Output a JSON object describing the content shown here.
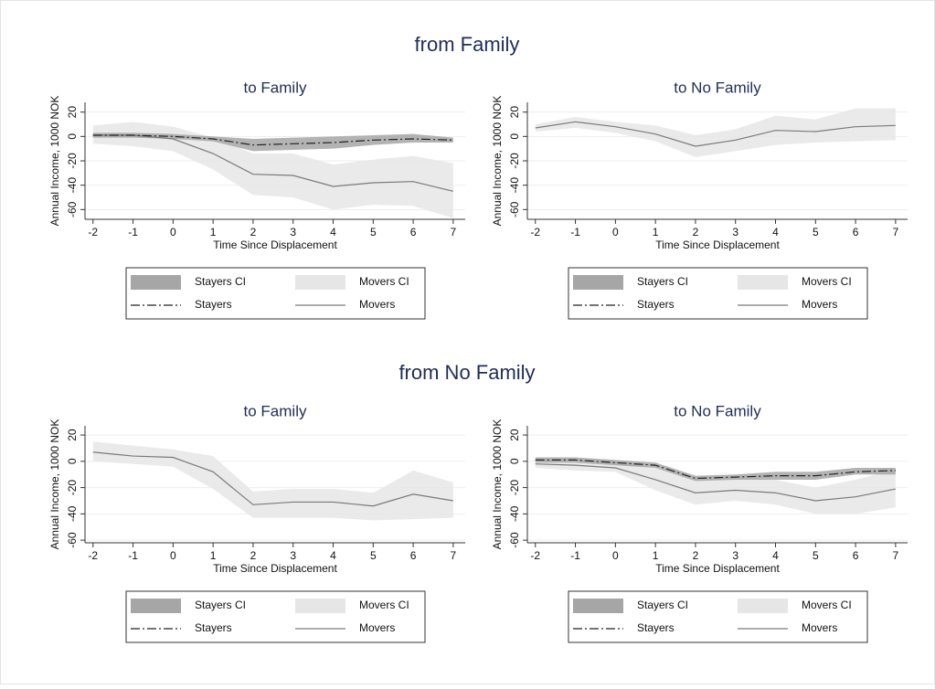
{
  "groups": [
    {
      "title": "from Family"
    },
    {
      "title": "from No Family"
    }
  ],
  "chart_data": [
    {
      "type": "line",
      "title": "to Family",
      "xlabel": "Time Since Displacement",
      "ylabel": "Annual Income, 1000 NOK",
      "x": [
        -2,
        -1,
        0,
        1,
        2,
        3,
        4,
        5,
        6,
        7
      ],
      "xlim": [
        -2.2,
        7.3
      ],
      "xticks": [
        -2,
        -1,
        0,
        1,
        2,
        3,
        4,
        5,
        6,
        7
      ],
      "ylim": [
        -68,
        28
      ],
      "yticks": [
        -60,
        -40,
        -20,
        0,
        20
      ],
      "grid": true,
      "series": [
        {
          "name": "Stayers CI",
          "color": "#a6a6a6",
          "lower": [
            -1,
            -1,
            -2,
            -4,
            -12,
            -11,
            -10,
            -7,
            -5,
            -5
          ],
          "upper": [
            3,
            3,
            2,
            0,
            -2,
            -1,
            0,
            1,
            2,
            -1
          ]
        },
        {
          "name": "Movers CI",
          "color": "#e6e6e6",
          "lower": [
            -6,
            -8,
            -12,
            -27,
            -48,
            -50,
            -60,
            -56,
            -57,
            -67
          ],
          "upper": [
            9,
            12,
            8,
            -1,
            -14,
            -14,
            -23,
            -19,
            -16,
            -22
          ]
        },
        {
          "name": "Stayers",
          "color": "#222222",
          "dash": "dash-dot",
          "values": [
            1,
            1,
            0,
            -2,
            -7,
            -6,
            -5,
            -3,
            -2,
            -3
          ]
        },
        {
          "name": "Movers",
          "color": "#7a7a7a",
          "dash": "solid",
          "values": [
            1,
            1,
            -2,
            -14,
            -31,
            -32,
            -41,
            -38,
            -37,
            -45
          ]
        }
      ]
    },
    {
      "type": "line",
      "title": "to No Family",
      "xlabel": "Time Since Displacement",
      "ylabel": "Annual Income, 1000 NOK",
      "x": [
        -2,
        -1,
        0,
        1,
        2,
        3,
        4,
        5,
        6,
        7
      ],
      "xlim": [
        -2.2,
        7.3
      ],
      "xticks": [
        -2,
        -1,
        0,
        1,
        2,
        3,
        4,
        5,
        6,
        7
      ],
      "ylim": [
        -68,
        28
      ],
      "yticks": [
        -60,
        -40,
        -20,
        0,
        20
      ],
      "grid": true,
      "series": [
        {
          "name": "Stayers CI",
          "color": "#a6a6a6",
          "lower": [
            null,
            null,
            null,
            null,
            null,
            null,
            null,
            null,
            null,
            null
          ],
          "upper": [
            null,
            null,
            null,
            null,
            null,
            null,
            null,
            null,
            null,
            null
          ]
        },
        {
          "name": "Movers CI",
          "color": "#e6e6e6",
          "lower": [
            4,
            7,
            3,
            -4,
            -17,
            -12,
            -7,
            -5,
            -4,
            -3
          ],
          "upper": [
            10,
            16,
            12,
            9,
            1,
            6,
            17,
            14,
            23,
            23
          ]
        },
        {
          "name": "Stayers",
          "color": "#222222",
          "dash": "dash-dot",
          "values": [
            null,
            null,
            null,
            null,
            null,
            null,
            null,
            null,
            null,
            null
          ]
        },
        {
          "name": "Movers",
          "color": "#7a7a7a",
          "dash": "solid",
          "values": [
            7,
            12,
            8,
            2,
            -8,
            -3,
            5,
            4,
            8,
            9
          ]
        }
      ]
    },
    {
      "type": "line",
      "title": "to Family",
      "xlabel": "Time Since Displacement",
      "ylabel": "Annual Income, 1000 NOK",
      "x": [
        -2,
        -1,
        0,
        1,
        2,
        3,
        4,
        5,
        6,
        7
      ],
      "xlim": [
        -2.2,
        7.3
      ],
      "xticks": [
        -2,
        -1,
        0,
        1,
        2,
        3,
        4,
        5,
        6,
        7
      ],
      "ylim": [
        -62,
        27
      ],
      "yticks": [
        -60,
        -40,
        -20,
        0,
        20
      ],
      "grid": true,
      "series": [
        {
          "name": "Stayers CI",
          "color": "#a6a6a6",
          "lower": [
            null,
            null,
            null,
            null,
            null,
            null,
            null,
            null,
            null,
            null
          ],
          "upper": [
            null,
            null,
            null,
            null,
            null,
            null,
            null,
            null,
            null,
            null
          ]
        },
        {
          "name": "Movers CI",
          "color": "#e6e6e6",
          "lower": [
            0,
            -2,
            -4,
            -21,
            -43,
            -43,
            -43,
            -45,
            -44,
            -43
          ],
          "upper": [
            15,
            12,
            9,
            4,
            -23,
            -21,
            -21,
            -24,
            -7,
            -16
          ]
        },
        {
          "name": "Stayers",
          "color": "#222222",
          "dash": "dash-dot",
          "values": [
            null,
            null,
            null,
            null,
            null,
            null,
            null,
            null,
            null,
            null
          ]
        },
        {
          "name": "Movers",
          "color": "#7a7a7a",
          "dash": "solid",
          "values": [
            7,
            4,
            3,
            -8,
            -33,
            -31,
            -31,
            -34,
            -25,
            -30
          ]
        }
      ]
    },
    {
      "type": "line",
      "title": "to No Family",
      "xlabel": "Time Since Displacement",
      "ylabel": "Annual Income, 1000 NOK",
      "x": [
        -2,
        -1,
        0,
        1,
        2,
        3,
        4,
        5,
        6,
        7
      ],
      "xlim": [
        -2.2,
        7.3
      ],
      "xticks": [
        -2,
        -1,
        0,
        1,
        2,
        3,
        4,
        5,
        6,
        7
      ],
      "ylim": [
        -62,
        27
      ],
      "yticks": [
        -60,
        -40,
        -20,
        0,
        20
      ],
      "grid": true,
      "series": [
        {
          "name": "Stayers CI",
          "color": "#a6a6a6",
          "lower": [
            -1,
            -1,
            -3,
            -5,
            -15,
            -14,
            -14,
            -14,
            -10,
            -10
          ],
          "upper": [
            3,
            3,
            1,
            -1,
            -11,
            -10,
            -8,
            -8,
            -5,
            -5
          ]
        },
        {
          "name": "Movers CI",
          "color": "#e6e6e6",
          "lower": [
            -5,
            -7,
            -8,
            -22,
            -33,
            -30,
            -33,
            -40,
            -40,
            -35
          ],
          "upper": [
            1,
            1,
            1,
            -5,
            -14,
            -12,
            -14,
            -20,
            -14,
            -6
          ]
        },
        {
          "name": "Stayers",
          "color": "#222222",
          "dash": "dash-dot",
          "values": [
            1,
            1,
            -1,
            -3,
            -13,
            -12,
            -11,
            -11,
            -8,
            -7
          ]
        },
        {
          "name": "Movers",
          "color": "#7a7a7a",
          "dash": "solid",
          "values": [
            -2,
            -3,
            -5,
            -14,
            -24,
            -22,
            -24,
            -30,
            -27,
            -21
          ]
        }
      ]
    }
  ]
}
